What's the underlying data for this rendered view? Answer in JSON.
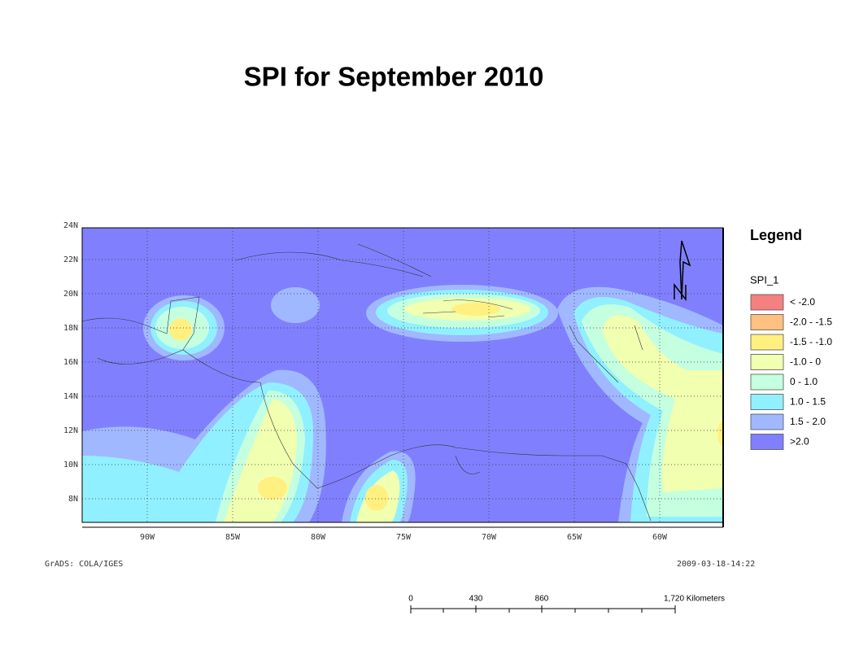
{
  "title": "SPI for September 2010",
  "map": {
    "lat_labels": [
      "24N",
      "22N",
      "20N",
      "18N",
      "16N",
      "14N",
      "12N",
      "10N",
      "8N"
    ],
    "lon_labels": [
      "90W",
      "85W",
      "80W",
      "75W",
      "70W",
      "65W",
      "60W"
    ],
    "credit": "GrADS: COLA/IGES",
    "timestamp": "2009-03-18-14:22"
  },
  "legend": {
    "title": "Legend",
    "layer": "SPI_1",
    "items": [
      {
        "label": "< -2.0",
        "color": "#f48080"
      },
      {
        "label": "-2.0 - -1.5",
        "color": "#ffc080"
      },
      {
        "label": "-1.5 -  -1.0",
        "color": "#fff080"
      },
      {
        "label": "-1.0 - 0",
        "color": "#f0ffb0"
      },
      {
        "label": "0 - 1.0",
        "color": "#c4ffe0"
      },
      {
        "label": "1.0 - 1.5",
        "color": "#90f0ff"
      },
      {
        "label": "1.5 - 2.0",
        "color": "#a0b8ff"
      },
      {
        "label": ">2.0",
        "color": "#8080ff"
      }
    ]
  },
  "scale_bar": {
    "labels": [
      "0",
      "430",
      "860",
      "1,720 Kilometers"
    ]
  }
}
